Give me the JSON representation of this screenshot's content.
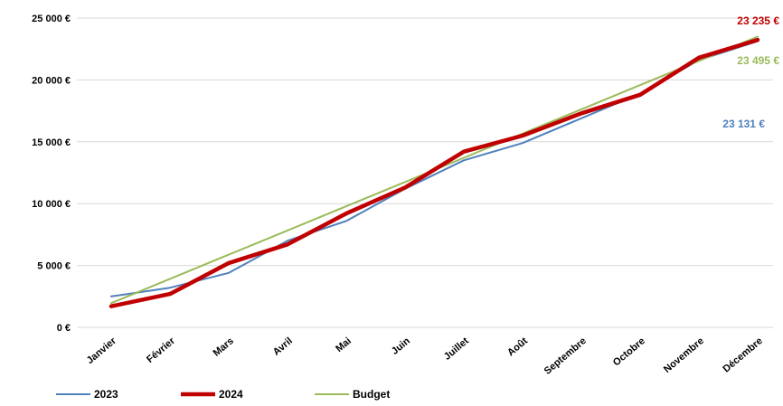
{
  "chart_data": {
    "type": "line",
    "title": "",
    "xlabel": "",
    "ylabel": "",
    "categories": [
      "Janvier",
      "Février",
      "Mars",
      "Avril",
      "Mai",
      "Juin",
      "Juillet",
      "Août",
      "Septembre",
      "Octobre",
      "Novembre",
      "Décembre"
    ],
    "ylim": [
      0,
      25000
    ],
    "yticks": [
      0,
      5000,
      10000,
      15000,
      20000,
      25000
    ],
    "ytick_labels": [
      "0 €",
      "5 000 €",
      "10 000 €",
      "15 000 €",
      "20 000 €",
      "25 000 €"
    ],
    "grid": true,
    "legend_position": "bottom-left",
    "series": [
      {
        "name": "2023",
        "color": "#4f81bd",
        "line_width": "thin",
        "values": [
          2500,
          3200,
          4400,
          7000,
          8600,
          11200,
          13500,
          14900,
          16900,
          18900,
          21600,
          23131
        ],
        "end_label": "23 131 €"
      },
      {
        "name": "2024",
        "color": "#c00000",
        "line_width": "thick",
        "values": [
          1700,
          2700,
          5200,
          6700,
          9200,
          11300,
          14200,
          15500,
          17300,
          18800,
          21800,
          23235
        ],
        "end_label": "23 235 €"
      },
      {
        "name": "Budget",
        "color": "#9bbb59",
        "line_width": "thin",
        "values": [
          1958,
          3916,
          5874,
          7832,
          9790,
          11748,
          13706,
          15664,
          17622,
          19580,
          21538,
          23495
        ],
        "end_label": "23 495 €"
      }
    ]
  }
}
